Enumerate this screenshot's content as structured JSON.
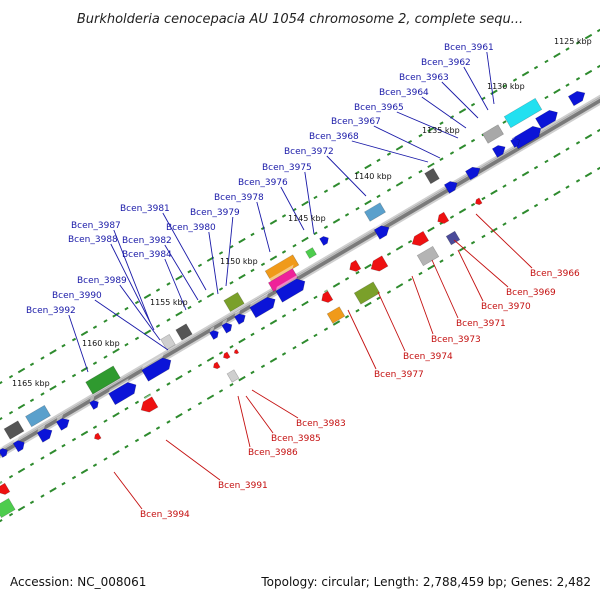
{
  "title": "Burkholderia cenocepacia AU 1054 chromosome 2, complete sequ...",
  "footer": {
    "accession": "Accession: NC_008061",
    "summary": "Topology: circular; Length: 2,788,459 bp; Genes: 2,482"
  },
  "colors": {
    "forward_label": "#1a1aa8",
    "reverse_label": "#c41010",
    "backbone": "#7a7a7a",
    "tick": "#2e8b2e",
    "gene_blue": "#0b14d8",
    "gene_red": "#ee1111"
  },
  "ticks": [
    "1125 kbp",
    "1130 kbp",
    "1135 kbp",
    "1140 kbp",
    "1145 kbp",
    "1150 kbp",
    "1155 kbp",
    "1160 kbp",
    "1165 kbp"
  ],
  "forward_genes": [
    "Bcen_3961",
    "Bcen_3962",
    "Bcen_3963",
    "Bcen_3964",
    "Bcen_3965",
    "Bcen_3967",
    "Bcen_3968",
    "Bcen_3972",
    "Bcen_3975",
    "Bcen_3976",
    "Bcen_3978",
    "Bcen_3979",
    "Bcen_3980",
    "Bcen_3981",
    "Bcen_3982",
    "Bcen_3984",
    "Bcen_3987",
    "Bcen_3988",
    "Bcen_3989",
    "Bcen_3990",
    "Bcen_3992"
  ],
  "reverse_genes": [
    "Bcen_3966",
    "Bcen_3969",
    "Bcen_3970",
    "Bcen_3971",
    "Bcen_3973",
    "Bcen_3974",
    "Bcen_3977",
    "Bcen_3983",
    "Bcen_3985",
    "Bcen_3986",
    "Bcen_3991",
    "Bcen_3994"
  ]
}
